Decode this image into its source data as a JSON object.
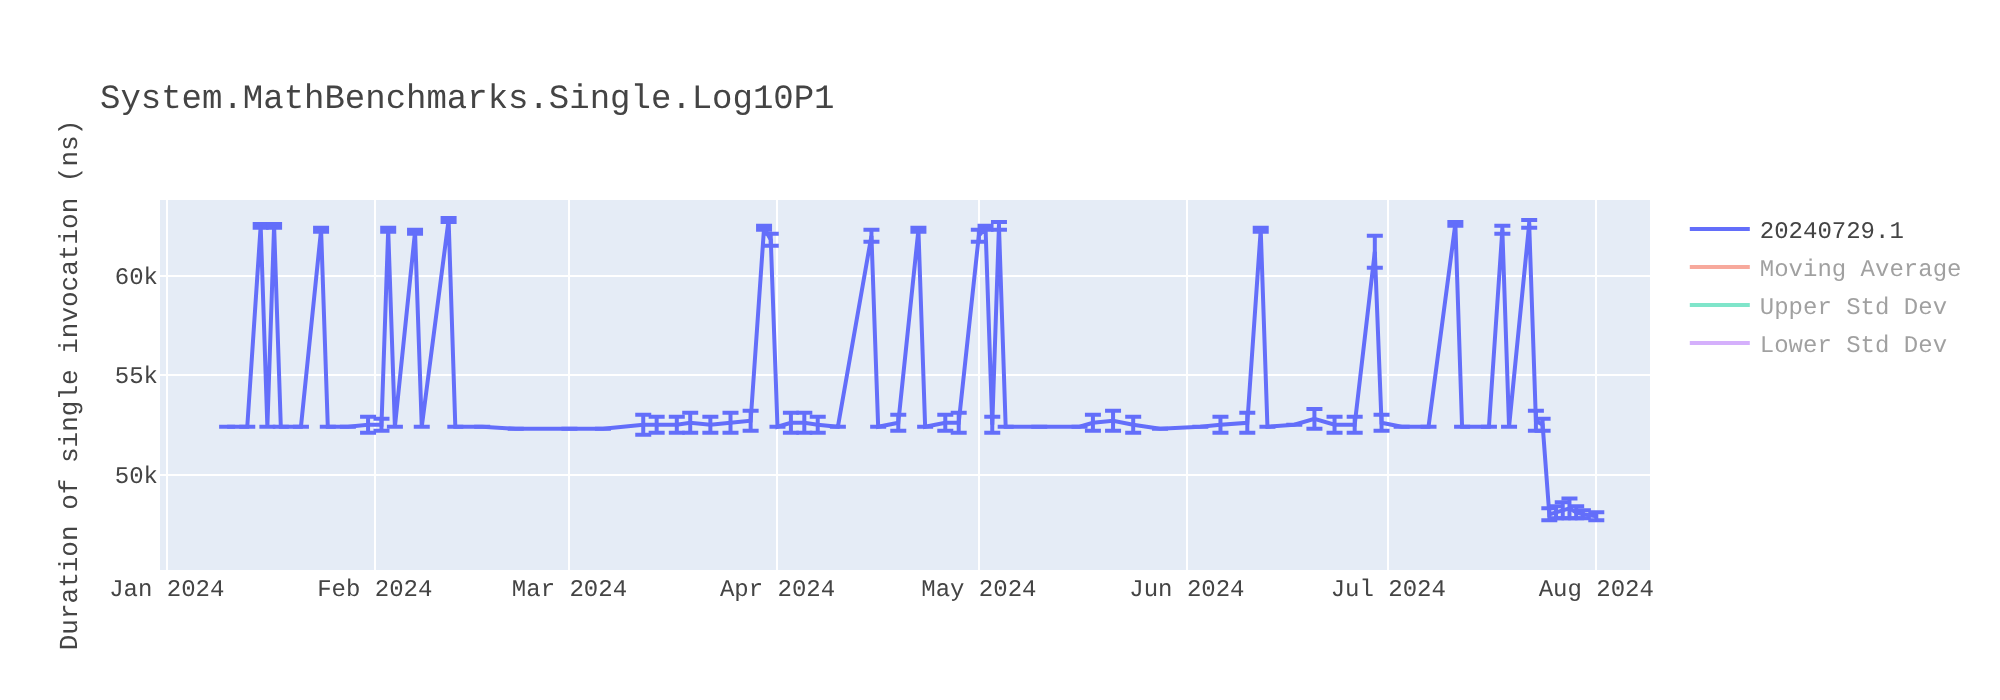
{
  "chart_data": {
    "type": "line",
    "title": "System.MathBenchmarks.Single.Log10P1",
    "ylabel": "Duration of single invocation (ns)",
    "x": [
      "2024-01-10",
      "2024-01-13",
      "2024-01-15",
      "2024-01-16",
      "2024-01-17",
      "2024-01-18",
      "2024-01-21",
      "2024-01-24",
      "2024-01-25",
      "2024-01-28",
      "2024-01-31",
      "2024-02-02",
      "2024-02-03",
      "2024-02-04",
      "2024-02-07",
      "2024-02-08",
      "2024-02-12",
      "2024-02-13",
      "2024-02-17",
      "2024-02-22",
      "2024-03-01",
      "2024-03-06",
      "2024-03-12",
      "2024-03-14",
      "2024-03-17",
      "2024-03-19",
      "2024-03-22",
      "2024-03-25",
      "2024-03-28",
      "2024-03-30",
      "2024-03-31",
      "2024-04-01",
      "2024-04-03",
      "2024-04-05",
      "2024-04-07",
      "2024-04-10",
      "2024-04-15",
      "2024-04-16",
      "2024-04-19",
      "2024-04-22",
      "2024-04-23",
      "2024-04-26",
      "2024-04-28",
      "2024-05-01",
      "2024-05-02",
      "2024-05-03",
      "2024-05-04",
      "2024-05-05",
      "2024-05-10",
      "2024-05-16",
      "2024-05-18",
      "2024-05-21",
      "2024-05-24",
      "2024-05-28",
      "2024-06-03",
      "2024-06-06",
      "2024-06-10",
      "2024-06-12",
      "2024-06-13",
      "2024-06-17",
      "2024-06-20",
      "2024-06-23",
      "2024-06-26",
      "2024-06-29",
      "2024-06-30",
      "2024-07-03",
      "2024-07-07",
      "2024-07-11",
      "2024-07-12",
      "2024-07-16",
      "2024-07-18",
      "2024-07-19",
      "2024-07-22",
      "2024-07-23",
      "2024-07-24",
      "2024-07-25",
      "2024-07-26",
      "2024-07-27",
      "2024-07-28",
      "2024-07-29",
      "2024-07-30",
      "2024-08-01"
    ],
    "series": [
      {
        "name": "20240729.1",
        "color": "#636efa",
        "values": [
          52400,
          52400,
          62500,
          52400,
          62500,
          52400,
          52400,
          62300,
          52400,
          52400,
          52500,
          52500,
          62300,
          52400,
          62200,
          52400,
          62800,
          52400,
          52400,
          52300,
          52300,
          52300,
          52500,
          52500,
          52500,
          52600,
          52500,
          52600,
          52700,
          62400,
          61800,
          52400,
          52600,
          52600,
          52500,
          52400,
          62000,
          52400,
          52600,
          62300,
          52400,
          52600,
          52600,
          62000,
          62400,
          52500,
          62500,
          52400,
          52400,
          52400,
          52600,
          52700,
          52500,
          52300,
          52400,
          52500,
          52600,
          62300,
          52400,
          52500,
          52800,
          52500,
          52500,
          61200,
          52600,
          52400,
          52400,
          62600,
          52400,
          52400,
          62300,
          52400,
          62600,
          52700,
          52500,
          48000,
          48100,
          48200,
          48300,
          48100,
          48000,
          47900
        ],
        "errors": [
          null,
          null,
          100,
          null,
          100,
          null,
          null,
          100,
          null,
          null,
          400,
          300,
          100,
          null,
          100,
          null,
          100,
          null,
          null,
          null,
          null,
          null,
          500,
          400,
          400,
          500,
          400,
          500,
          500,
          100,
          300,
          null,
          500,
          500,
          400,
          null,
          300,
          null,
          400,
          100,
          null,
          400,
          500,
          300,
          100,
          400,
          200,
          null,
          null,
          null,
          400,
          500,
          400,
          null,
          null,
          400,
          500,
          100,
          null,
          null,
          500,
          400,
          400,
          800,
          400,
          null,
          null,
          100,
          null,
          null,
          200,
          null,
          200,
          500,
          300,
          300,
          300,
          400,
          500,
          300,
          200,
          200
        ]
      },
      {
        "name": "Moving Average",
        "color": "#ef553b",
        "values": [
          null,
          null,
          null,
          null,
          null,
          null,
          null,
          null,
          null,
          null,
          null,
          null,
          null,
          null,
          null,
          null,
          null,
          null,
          null,
          null,
          null,
          null,
          null,
          null,
          null,
          null,
          null,
          null,
          null,
          null,
          null,
          null,
          null,
          null,
          null,
          null,
          null,
          null,
          null,
          null,
          null,
          null,
          null,
          null,
          null,
          null,
          null,
          null,
          null,
          null,
          null,
          null,
          null,
          null,
          null,
          null,
          null,
          null,
          null,
          null,
          null,
          null,
          null,
          null,
          null,
          null,
          null,
          null,
          null,
          null,
          null,
          null,
          null,
          null,
          null,
          null,
          null,
          null,
          null,
          null,
          null,
          null
        ]
      },
      {
        "name": "Upper Std Dev",
        "color": "#00cc96",
        "values": [
          null,
          null,
          null,
          null,
          null,
          null,
          null,
          null,
          null,
          null,
          null,
          null,
          null,
          null,
          null,
          null,
          null,
          null,
          null,
          null,
          null,
          null,
          null,
          null,
          null,
          null,
          null,
          null,
          null,
          null,
          null,
          null,
          null,
          null,
          null,
          null,
          null,
          null,
          null,
          null,
          null,
          null,
          null,
          null,
          null,
          null,
          null,
          null,
          null,
          null,
          null,
          null,
          null,
          null,
          null,
          null,
          null,
          null,
          null,
          null,
          null,
          null,
          null,
          null,
          null,
          null,
          null,
          null,
          null,
          null,
          null,
          null,
          null,
          null,
          null,
          null,
          null,
          null,
          null,
          null,
          null,
          null
        ]
      },
      {
        "name": "Lower Std Dev",
        "color": "#ab63fa",
        "values": [
          null,
          null,
          null,
          null,
          null,
          null,
          null,
          null,
          null,
          null,
          null,
          null,
          null,
          null,
          null,
          null,
          null,
          null,
          null,
          null,
          null,
          null,
          null,
          null,
          null,
          null,
          null,
          null,
          null,
          null,
          null,
          null,
          null,
          null,
          null,
          null,
          null,
          null,
          null,
          null,
          null,
          null,
          null,
          null,
          null,
          null,
          null,
          null,
          null,
          null,
          null,
          null,
          null,
          null,
          null,
          null,
          null,
          null,
          null,
          null,
          null,
          null,
          null,
          null,
          null,
          null,
          null,
          null,
          null,
          null,
          null,
          null,
          null,
          null,
          null,
          null,
          null,
          null,
          null,
          null,
          null,
          null
        ]
      }
    ],
    "xlim": [
      "2023-12-31",
      "2024-08-09"
    ],
    "xticks": [
      {
        "value": "2024-01-01",
        "label": "Jan 2024"
      },
      {
        "value": "2024-02-01",
        "label": "Feb 2024"
      },
      {
        "value": "2024-03-01",
        "label": "Mar 2024"
      },
      {
        "value": "2024-04-01",
        "label": "Apr 2024"
      },
      {
        "value": "2024-05-01",
        "label": "May 2024"
      },
      {
        "value": "2024-06-01",
        "label": "Jun 2024"
      },
      {
        "value": "2024-07-01",
        "label": "Jul 2024"
      },
      {
        "value": "2024-08-01",
        "label": "Aug 2024"
      }
    ],
    "ylim": [
      45200,
      63800
    ],
    "yticks": [
      {
        "value": 50000,
        "label": "50k"
      },
      {
        "value": 55000,
        "label": "55k"
      },
      {
        "value": 60000,
        "label": "60k"
      }
    ],
    "grid": true,
    "legend": "top right",
    "marker": "none",
    "line_style": "solid"
  }
}
